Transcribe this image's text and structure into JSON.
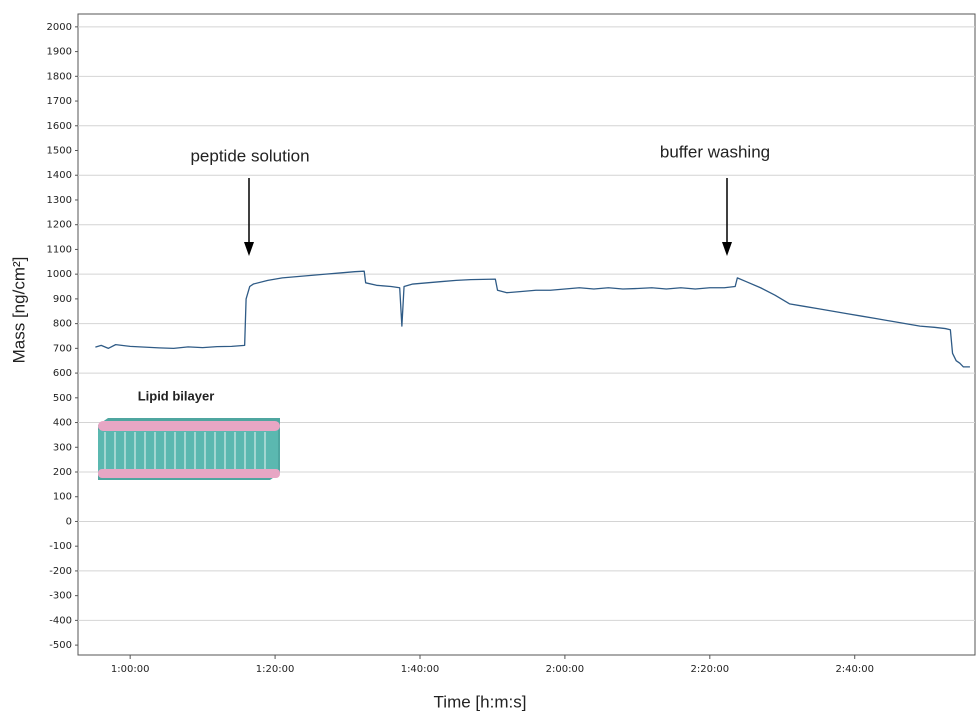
{
  "chart_data": {
    "type": "line",
    "xlabel": "Time [h:m:s]",
    "ylabel": "Mass [ng/cm²]",
    "annotations": [
      "peptide solution",
      "buffer washing",
      "Lipid bilayer"
    ],
    "xlim": [
      52.8,
      176.6
    ],
    "xticks": [
      {
        "value": 60,
        "label": "1:00:00"
      },
      {
        "value": 80,
        "label": "1:20:00"
      },
      {
        "value": 100,
        "label": "1:40:00"
      },
      {
        "value": 120,
        "label": "2:00:00"
      },
      {
        "value": 140,
        "label": "2:20:00"
      },
      {
        "value": 160,
        "label": "2:40:00"
      }
    ],
    "ylim": [
      -540,
      2052
    ],
    "yticks": [
      -500,
      -400,
      -300,
      -200,
      -100,
      0,
      100,
      200,
      300,
      400,
      500,
      600,
      700,
      800,
      900,
      1000,
      1100,
      1200,
      1300,
      1400,
      1500,
      1600,
      1700,
      1800,
      1900,
      2000
    ],
    "grid": true,
    "x": [
      55.2,
      56,
      57,
      58,
      60,
      62,
      64,
      66,
      68,
      70,
      72,
      74,
      75.8,
      76,
      76.5,
      77,
      79,
      81,
      83,
      85,
      87,
      89,
      91,
      92.3,
      92.5,
      94,
      96,
      97.2,
      97.5,
      97.8,
      99,
      101,
      103,
      105,
      107,
      110.4,
      110.7,
      112,
      114,
      116,
      118,
      120,
      122,
      124,
      126,
      128,
      130,
      132,
      134,
      136,
      138,
      140,
      142,
      143.5,
      143.8,
      145,
      147,
      149,
      151,
      153,
      155,
      157,
      159,
      161,
      163,
      165,
      167,
      169,
      171,
      172.5,
      173.2,
      173.5,
      174,
      174.5,
      175,
      175.9
    ],
    "series": [
      {
        "color": "#2f5b86",
        "values": [
          705,
          712,
          700,
          715,
          708,
          705,
          702,
          700,
          706,
          703,
          707,
          708,
          712,
          900,
          950,
          960,
          975,
          985,
          990,
          995,
          1000,
          1005,
          1010,
          1012,
          965,
          955,
          950,
          945,
          790,
          950,
          960,
          965,
          970,
          975,
          978,
          980,
          935,
          925,
          930,
          935,
          935,
          940,
          945,
          940,
          945,
          940,
          942,
          945,
          940,
          945,
          940,
          945,
          945,
          950,
          985,
          970,
          945,
          915,
          880,
          870,
          860,
          850,
          840,
          830,
          820,
          810,
          800,
          790,
          785,
          780,
          775,
          680,
          650,
          640,
          625,
          625
        ]
      }
    ]
  }
}
